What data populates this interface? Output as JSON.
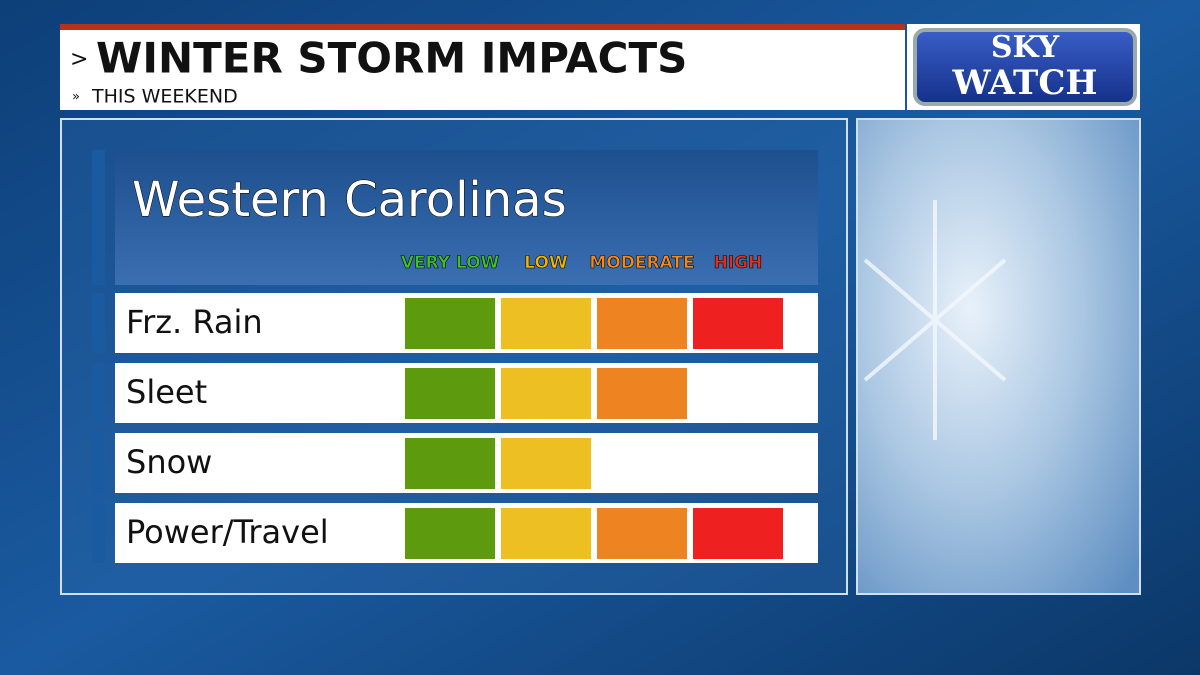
{
  "header": {
    "title": "WINTER STORM IMPACTS",
    "subtitle": "THIS WEEKEND"
  },
  "logo": {
    "line1": "SKY",
    "line2": "WATCH"
  },
  "panel": {
    "region": "Western Carolinas",
    "levels": [
      {
        "label": "VERY LOW",
        "color": "#5e9a0e",
        "text_color": "#3fbf2a"
      },
      {
        "label": "LOW",
        "color": "#eebf22",
        "text_color": "#f2b400"
      },
      {
        "label": "MODERATE",
        "color": "#ee8322",
        "text_color": "#f08a1e"
      },
      {
        "label": "HIGH",
        "color": "#ee2020",
        "text_color": "#e0301e"
      }
    ],
    "rows": [
      {
        "label": "Frz. Rain",
        "level": 4
      },
      {
        "label": "Sleet",
        "level": 3
      },
      {
        "label": "Snow",
        "level": 2
      },
      {
        "label": "Power/Travel",
        "level": 4
      }
    ]
  }
}
